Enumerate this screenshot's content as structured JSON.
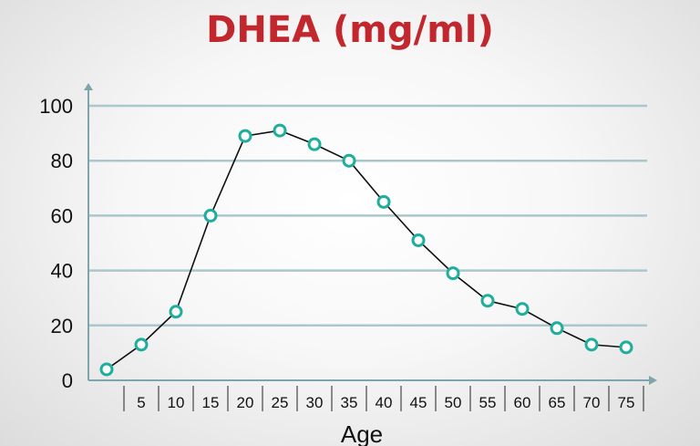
{
  "colors": {
    "title": "#c1272d",
    "gridline": "#a9c7cc",
    "axis": "#7fa4ab",
    "line": "#111111",
    "marker_stroke": "#1fae9c",
    "marker_fill": "#ffffff"
  },
  "chart_data": {
    "type": "line",
    "title": "DHEA (mg/ml)",
    "xlabel": "Age",
    "ylabel": "",
    "y_ticks": [
      "0",
      "20",
      "40",
      "60",
      "80",
      "100"
    ],
    "x_ticks": [
      "5",
      "10",
      "15",
      "20",
      "25",
      "30",
      "35",
      "40",
      "45",
      "50",
      "55",
      "60",
      "65",
      "70",
      "75"
    ],
    "ylim": [
      0,
      100
    ],
    "grid": true,
    "legend": "none",
    "series": [
      {
        "x": [
          0,
          5,
          10,
          15,
          20,
          25,
          30,
          35,
          40,
          45,
          50,
          55,
          60,
          65,
          70,
          75
        ],
        "values": [
          4,
          13,
          25,
          60,
          89,
          91,
          86,
          80,
          65,
          51,
          39,
          29,
          26,
          19,
          13,
          12
        ]
      }
    ]
  }
}
